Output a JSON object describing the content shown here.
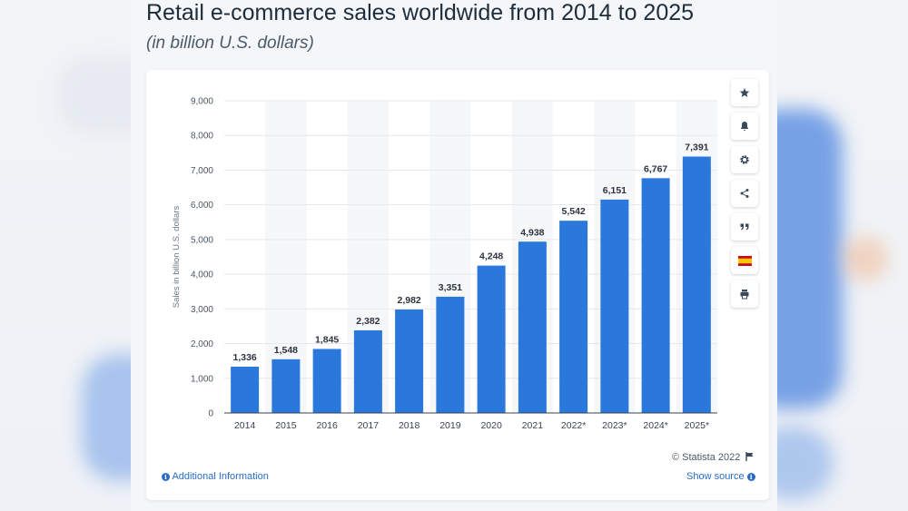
{
  "title": "Retail e-commerce sales worldwide from 2014 to 2025",
  "subtitle": "(in billion U.S. dollars)",
  "toolbar": {
    "buttons": [
      {
        "name": "star-icon"
      },
      {
        "name": "bell-icon"
      },
      {
        "name": "gear-icon"
      },
      {
        "name": "share-icon"
      },
      {
        "name": "quote-icon"
      },
      {
        "name": "flag-es-icon"
      },
      {
        "name": "print-icon"
      }
    ]
  },
  "footer": {
    "credit": "© Statista 2022",
    "additional_info": "Additional Information",
    "show_source": "Show source"
  },
  "colors": {
    "bar": "#2a78dc",
    "accent": "#2a6cc4"
  },
  "chart_data": {
    "type": "bar",
    "categories": [
      "2014",
      "2015",
      "2016",
      "2017",
      "2018",
      "2019",
      "2020",
      "2021",
      "2022*",
      "2023*",
      "2024*",
      "2025*"
    ],
    "values": [
      1336,
      1548,
      1845,
      2382,
      2982,
      3351,
      4248,
      4938,
      5542,
      6151,
      6767,
      7391
    ],
    "value_labels": [
      "1,336",
      "1,548",
      "1,845",
      "2,382",
      "2,982",
      "3,351",
      "4,248",
      "4,938",
      "5,542",
      "6,151",
      "6,767",
      "7,391"
    ],
    "yticks": [
      "0",
      "1,000",
      "2,000",
      "3,000",
      "4,000",
      "5,000",
      "6,000",
      "7,000",
      "8,000",
      "9,000"
    ],
    "ylabel": "Sales in billion U.S. dollars",
    "xlabel": "",
    "ylim": [
      0,
      9000
    ],
    "grid": true
  }
}
